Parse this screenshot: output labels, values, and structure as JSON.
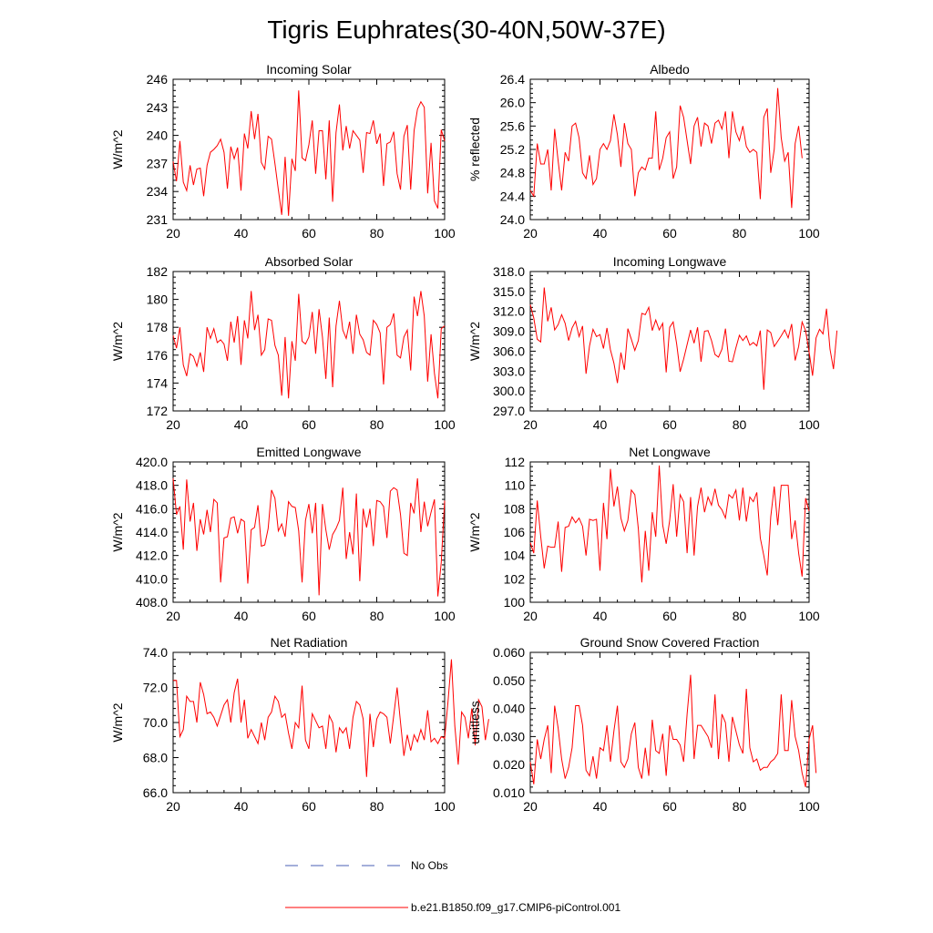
{
  "title": "Tigris Euphrates(30-40N,50W-37E)",
  "chart_data": [
    {
      "type": "line",
      "title": "Incoming Solar",
      "ylabel": "W/m^2",
      "xlim": [
        20,
        100
      ],
      "ylim": [
        231,
        246
      ],
      "xticks": [
        "20",
        "40",
        "60",
        "80",
        "100"
      ],
      "yticks": [
        "231",
        "234",
        "237",
        "240",
        "243",
        "246"
      ],
      "series": [
        {
          "name": "b.e21.B1850.f09_g17.CMIP6-piControl.001",
          "x0": 20,
          "values": [
            237.2,
            235.1,
            239.4,
            235.0,
            234.1,
            236.8,
            234.7,
            236.4,
            236.5,
            233.5,
            236.8,
            238.2,
            238.5,
            238.9,
            239.6,
            238.2,
            234.3,
            238.8,
            237.5,
            238.7,
            234.1,
            240.2,
            238.6,
            242.6,
            239.6,
            242.3,
            237.1,
            236.4,
            239.9,
            239.6,
            237.0,
            234.2,
            231.5,
            237.7,
            231.4,
            237.5,
            236.2,
            244.8,
            237.6,
            237.3,
            239.0,
            241.6,
            235.9,
            240.5,
            240.5,
            235.3,
            241.6,
            232.9,
            240.3,
            243.3,
            238.4,
            241.0,
            238.6,
            240.5,
            240.0,
            239.5,
            236.0,
            240.3,
            240.2,
            241.6,
            239.1,
            240.2,
            234.6,
            239.1,
            239.3,
            240.4,
            235.9,
            234.2,
            239.9,
            241.1,
            234.2,
            240.5,
            242.8,
            243.6,
            243.0,
            233.8,
            239.2,
            233.0,
            232.2,
            240.6,
            239.4
          ]
        }
      ]
    },
    {
      "type": "line",
      "title": "Albedo",
      "ylabel": "% reflected",
      "xlim": [
        20,
        100
      ],
      "ylim": [
        24.0,
        26.4
      ],
      "xticks": [
        "20",
        "40",
        "60",
        "80",
        "100"
      ],
      "yticks": [
        "24.0",
        "24.4",
        "24.8",
        "25.2",
        "25.6",
        "26.0",
        "26.4"
      ],
      "series": [
        {
          "name": "b.e21.B1850.f09_g17.CMIP6-piControl.001",
          "x0": 20,
          "values": [
            24.5,
            24.4,
            25.3,
            24.95,
            24.95,
            25.2,
            24.5,
            25.55,
            25.0,
            24.5,
            25.15,
            25.0,
            25.6,
            25.65,
            25.4,
            24.8,
            24.7,
            25.1,
            24.6,
            24.7,
            25.2,
            25.3,
            25.2,
            25.35,
            25.8,
            25.45,
            24.9,
            25.65,
            25.3,
            25.2,
            24.4,
            24.8,
            24.9,
            24.85,
            25.05,
            25.05,
            25.85,
            24.85,
            25.05,
            25.4,
            25.5,
            24.7,
            24.9,
            25.95,
            25.75,
            25.35,
            24.95,
            25.6,
            25.75,
            25.25,
            25.65,
            25.6,
            25.3,
            25.65,
            25.7,
            25.55,
            25.85,
            25.05,
            25.85,
            25.5,
            25.35,
            25.6,
            25.25,
            25.15,
            25.2,
            25.15,
            24.35,
            25.75,
            25.9,
            24.8,
            25.2,
            26.25,
            25.4,
            25.0,
            25.15,
            24.2,
            25.3,
            25.6,
            25.05
          ]
        }
      ]
    },
    {
      "type": "line",
      "title": "Absorbed Solar",
      "ylabel": "W/m^2",
      "xlim": [
        20,
        100
      ],
      "ylim": [
        172,
        182
      ],
      "xticks": [
        "20",
        "40",
        "60",
        "80",
        "100"
      ],
      "yticks": [
        "172",
        "174",
        "176",
        "178",
        "180",
        "182"
      ],
      "series": [
        {
          "name": "b.e21.B1850.f09_g17.CMIP6-piControl.001",
          "x0": 20,
          "values": [
            177.4,
            176.5,
            178.0,
            175.3,
            174.5,
            176.1,
            175.9,
            175.2,
            176.2,
            174.8,
            178.0,
            177.2,
            177.9,
            176.9,
            177.1,
            176.8,
            175.6,
            178.4,
            176.9,
            178.8,
            175.3,
            178.5,
            177.2,
            180.6,
            177.8,
            178.9,
            176.0,
            176.4,
            178.6,
            178.5,
            176.7,
            176.0,
            173.1,
            177.3,
            172.9,
            177.0,
            175.6,
            180.4,
            177.0,
            176.8,
            177.3,
            179.1,
            176.1,
            179.3,
            177.3,
            174.3,
            178.7,
            173.7,
            178.1,
            179.9,
            177.8,
            177.2,
            178.4,
            176.1,
            178.9,
            177.5,
            177.1,
            176.2,
            176.0,
            178.5,
            178.2,
            177.6,
            173.9,
            178.0,
            178.2,
            179.0,
            176.0,
            175.8,
            177.3,
            177.8,
            174.9,
            180.2,
            178.8,
            180.6,
            178.8,
            174.1,
            177.5,
            174.7,
            172.9,
            177.9,
            178.1
          ]
        }
      ]
    },
    {
      "type": "line",
      "title": "Incoming Longwave",
      "ylabel": "W/m^2",
      "xlim": [
        20,
        100
      ],
      "ylim": [
        297.0,
        318.0
      ],
      "xticks": [
        "20",
        "40",
        "60",
        "80",
        "100"
      ],
      "yticks": [
        "297.0",
        "300.0",
        "303.0",
        "306.0",
        "309.0",
        "312.0",
        "315.0",
        "318.0"
      ],
      "series": [
        {
          "name": "b.e21.B1850.f09_g17.CMIP6-piControl.001",
          "x0": 20,
          "values": [
            313.0,
            311.0,
            307.8,
            307.4,
            315.6,
            310.5,
            312.6,
            309.2,
            310.0,
            311.5,
            310.2,
            307.6,
            309.5,
            310.5,
            308.2,
            309.8,
            302.6,
            306.8,
            309.3,
            308.2,
            308.5,
            306.4,
            309.5,
            306.2,
            304.2,
            301.2,
            305.8,
            303.2,
            309.4,
            307.8,
            306.1,
            307.6,
            311.7,
            311.5,
            312.6,
            309.1,
            310.7,
            309.2,
            310.2,
            302.8,
            309.6,
            310.4,
            307.1,
            302.9,
            304.8,
            307.0,
            309.2,
            307.2,
            309.6,
            304.4,
            309.0,
            309.1,
            307.6,
            305.5,
            305.1,
            306.3,
            309.4,
            304.5,
            304.4,
            306.5,
            308.4,
            307.6,
            308.3,
            306.9,
            307.3,
            306.8,
            309.1,
            300.2,
            309.2,
            308.8,
            306.7,
            307.5,
            308.3,
            309.2,
            308.0,
            310.1,
            304.6,
            306.7,
            310.4,
            309.1,
            305.9,
            302.3,
            308.0,
            309.3,
            308.6,
            312.4,
            306.3,
            303.3,
            309.1
          ]
        }
      ]
    },
    {
      "type": "line",
      "title": "Emitted Longwave",
      "ylabel": "W/m^2",
      "xlim": [
        20,
        100
      ],
      "ylim": [
        408.0,
        420.0
      ],
      "xticks": [
        "20",
        "40",
        "60",
        "80",
        "100"
      ],
      "yticks": [
        "408.0",
        "410.0",
        "412.0",
        "414.0",
        "416.0",
        "418.0",
        "420.0"
      ],
      "series": [
        {
          "name": "b.e21.B1850.f09_g17.CMIP6-piControl.001",
          "x0": 20,
          "values": [
            418.6,
            415.5,
            416.2,
            412.5,
            418.5,
            414.9,
            416.5,
            412.4,
            415.1,
            413.8,
            415.9,
            414.0,
            416.8,
            416.5,
            409.7,
            413.5,
            413.6,
            415.2,
            415.3,
            413.9,
            415.1,
            414.9,
            409.6,
            414.2,
            414.4,
            416.3,
            412.8,
            412.9,
            414.3,
            417.6,
            416.9,
            414.1,
            414.7,
            413.6,
            416.6,
            416.2,
            416.1,
            414.1,
            409.7,
            415.0,
            416.4,
            413.9,
            416.5,
            408.6,
            416.4,
            414.2,
            412.5,
            413.8,
            414.3,
            415.0,
            417.8,
            411.7,
            414.0,
            412.1,
            417.3,
            409.8,
            416.0,
            414.4,
            416.0,
            412.8,
            416.7,
            416.6,
            416.2,
            413.5,
            417.5,
            417.8,
            417.6,
            415.5,
            412.2,
            412.0,
            416.5,
            415.6,
            418.6,
            414.0,
            416.6,
            414.5,
            415.7,
            416.8,
            408.5,
            411.4,
            416.7
          ]
        }
      ]
    },
    {
      "type": "line",
      "title": "Net Longwave",
      "ylabel": "W/m^2",
      "xlim": [
        20,
        100
      ],
      "ylim": [
        100,
        112
      ],
      "xticks": [
        "20",
        "40",
        "60",
        "80",
        "100"
      ],
      "yticks": [
        "100",
        "102",
        "104",
        "106",
        "108",
        "110",
        "112"
      ],
      "series": [
        {
          "name": "b.e21.B1850.f09_g17.CMIP6-piControl.001",
          "x0": 20,
          "values": [
            105.1,
            104.2,
            108.7,
            105.6,
            102.9,
            104.8,
            104.7,
            104.7,
            106.9,
            102.6,
            106.4,
            106.5,
            107.3,
            106.8,
            107.2,
            106.5,
            104.0,
            107.1,
            107.0,
            107.1,
            102.7,
            108.5,
            105.4,
            111.4,
            108.2,
            109.9,
            107.2,
            106.1,
            107.0,
            109.6,
            109.2,
            106.3,
            101.7,
            106.1,
            102.7,
            107.7,
            105.6,
            111.7,
            106.6,
            105.0,
            107.0,
            110.1,
            105.6,
            109.2,
            108.6,
            104.2,
            109.0,
            104.0,
            108.2,
            109.8,
            107.7,
            109.0,
            108.3,
            109.7,
            108.3,
            107.9,
            107.2,
            109.2,
            108.9,
            109.6,
            107.0,
            109.8,
            106.9,
            109.0,
            108.6,
            109.4,
            105.5,
            104.0,
            102.3,
            107.3,
            109.9,
            106.6,
            110.0,
            110.0,
            110.0,
            105.4,
            107.0,
            104.2,
            102.2,
            108.9,
            107.8
          ]
        }
      ]
    },
    {
      "type": "line",
      "title": "Net Radiation",
      "ylabel": "W/m^2",
      "xlim": [
        20,
        100
      ],
      "ylim": [
        66.0,
        74.0
      ],
      "xticks": [
        "20",
        "40",
        "60",
        "80",
        "100"
      ],
      "yticks": [
        "66.0",
        "68.0",
        "70.0",
        "72.0",
        "74.0"
      ],
      "series": [
        {
          "name": "b.e21.B1850.f09_g17.CMIP6-piControl.001",
          "x0": 20,
          "values": [
            72.4,
            72.4,
            69.2,
            69.6,
            71.5,
            71.2,
            71.2,
            70.0,
            72.3,
            71.6,
            70.5,
            70.6,
            70.3,
            69.8,
            70.4,
            71.0,
            71.3,
            70.0,
            71.7,
            72.5,
            70.0,
            71.3,
            69.1,
            69.6,
            69.2,
            68.8,
            70.0,
            69.0,
            70.3,
            70.6,
            71.5,
            71.2,
            70.3,
            70.5,
            69.4,
            68.5,
            70.0,
            69.7,
            72.1,
            69.0,
            68.5,
            70.5,
            70.1,
            69.7,
            69.8,
            68.5,
            70.4,
            70.0,
            68.3,
            69.7,
            69.4,
            69.7,
            68.5,
            70.3,
            71.2,
            71.0,
            70.2,
            66.9,
            70.5,
            68.6,
            70.2,
            70.6,
            70.5,
            70.3,
            68.8,
            70.4,
            72.0,
            70.0,
            68.1,
            69.3,
            68.4,
            69.3,
            68.9,
            69.6,
            69.0,
            70.7,
            68.9,
            69.1,
            68.8,
            69.2,
            69.1,
            71.2,
            73.6,
            69.8,
            67.6,
            70.6,
            70.3,
            69.1,
            70.8,
            68.7,
            71.3,
            70.9,
            69.0,
            70.2
          ]
        }
      ]
    },
    {
      "type": "line",
      "title": "Ground Snow Covered Fraction",
      "ylabel": "unitless",
      "xlim": [
        20,
        100
      ],
      "ylim": [
        0.01,
        0.06
      ],
      "xticks": [
        "20",
        "40",
        "60",
        "80",
        "100"
      ],
      "yticks": [
        "0.010",
        "0.020",
        "0.030",
        "0.040",
        "0.050",
        "0.060"
      ],
      "series": [
        {
          "name": "b.e21.B1850.f09_g17.CMIP6-piControl.001",
          "x0": 20,
          "values": [
            0.021,
            0.013,
            0.029,
            0.022,
            0.029,
            0.034,
            0.017,
            0.041,
            0.033,
            0.022,
            0.015,
            0.019,
            0.026,
            0.041,
            0.041,
            0.034,
            0.018,
            0.016,
            0.023,
            0.015,
            0.026,
            0.025,
            0.034,
            0.021,
            0.032,
            0.041,
            0.021,
            0.019,
            0.022,
            0.031,
            0.035,
            0.019,
            0.015,
            0.026,
            0.016,
            0.036,
            0.025,
            0.024,
            0.031,
            0.016,
            0.034,
            0.029,
            0.029,
            0.027,
            0.021,
            0.038,
            0.052,
            0.022,
            0.034,
            0.034,
            0.032,
            0.03,
            0.026,
            0.045,
            0.022,
            0.038,
            0.035,
            0.021,
            0.037,
            0.032,
            0.027,
            0.024,
            0.047,
            0.026,
            0.021,
            0.022,
            0.018,
            0.019,
            0.019,
            0.021,
            0.022,
            0.024,
            0.045,
            0.025,
            0.025,
            0.043,
            0.03,
            0.025,
            0.017,
            0.012,
            0.029,
            0.034,
            0.017
          ]
        }
      ]
    }
  ],
  "legend": {
    "entries": [
      {
        "label": "No Obs",
        "color": "#4a5fb4",
        "style": "dashed"
      },
      {
        "label": "b.e21.B1850.f09_g17.CMIP6-piControl.001",
        "color": "#ff0000",
        "style": "solid"
      }
    ]
  }
}
